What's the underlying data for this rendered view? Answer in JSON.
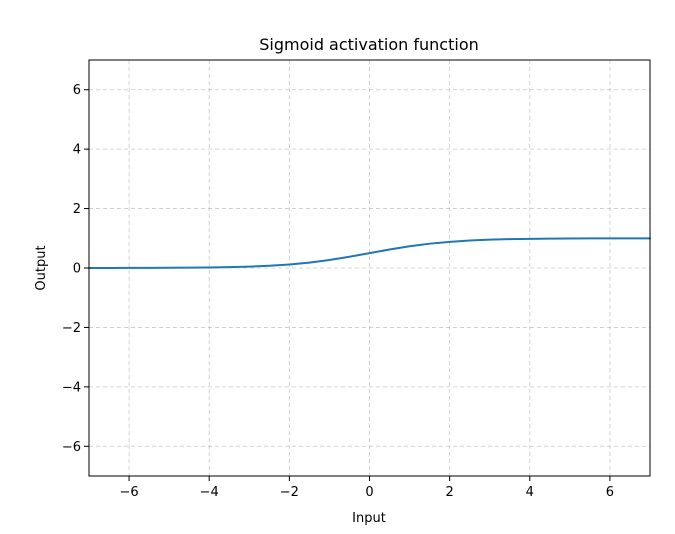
{
  "chart_data": {
    "type": "line",
    "title": "Sigmoid activation function",
    "xlabel": "Input",
    "ylabel": "Output",
    "xlim": [
      -7,
      7
    ],
    "ylim": [
      -7,
      7
    ],
    "x_ticks": [
      -6,
      -4,
      -2,
      0,
      2,
      4,
      6
    ],
    "y_ticks": [
      -6,
      -4,
      -2,
      0,
      2,
      4,
      6
    ],
    "x_tick_labels": [
      "−6",
      "−4",
      "−2",
      "0",
      "2",
      "4",
      "6"
    ],
    "y_tick_labels": [
      "−6",
      "−4",
      "−2",
      "0",
      "2",
      "4",
      "6"
    ],
    "grid": true,
    "grid_style": "dashed",
    "series": [
      {
        "color": "#1f77b4",
        "x": [
          -7,
          -6.5,
          -6,
          -5.5,
          -5,
          -4.5,
          -4,
          -3.5,
          -3,
          -2.5,
          -2,
          -1.5,
          -1,
          -0.5,
          0,
          0.5,
          1,
          1.5,
          2,
          2.5,
          3,
          3.5,
          4,
          4.5,
          5,
          5.5,
          6,
          6.5,
          7
        ],
        "y": [
          0.001,
          0.0015,
          0.0025,
          0.0041,
          0.0067,
          0.011,
          0.018,
          0.029,
          0.047,
          0.076,
          0.119,
          0.182,
          0.269,
          0.378,
          0.5,
          0.622,
          0.731,
          0.818,
          0.881,
          0.924,
          0.953,
          0.971,
          0.982,
          0.989,
          0.993,
          0.996,
          0.998,
          0.998,
          0.999
        ]
      }
    ]
  }
}
